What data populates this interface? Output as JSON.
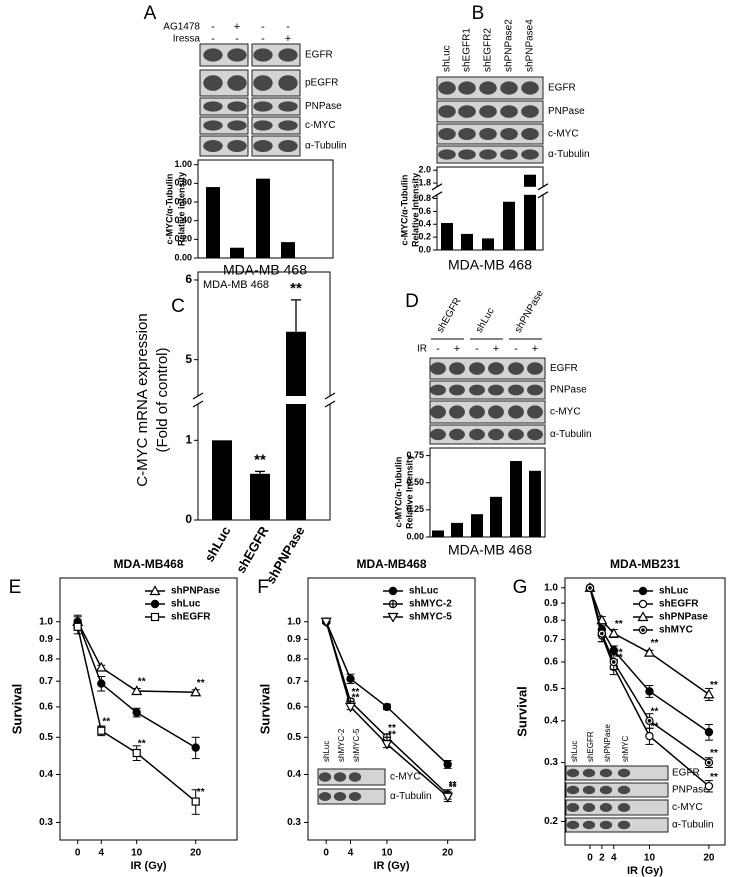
{
  "chart_data": [
    {
      "label": "A",
      "type": "bar",
      "treatments": [
        {
          "name": "AG1478",
          "signs": [
            "-",
            "+",
            "-",
            "-"
          ]
        },
        {
          "name": "Iressa",
          "signs": [
            "-",
            "-",
            "-",
            "+"
          ]
        }
      ],
      "bands": [
        "EGFR",
        "pEGFR",
        "PNPase",
        "c-MYC",
        "α-Tubulin"
      ],
      "values": [
        0.76,
        0.11,
        0.85,
        0.17
      ],
      "color": "#000000",
      "ylabel": [
        "c-MYC/α-Tubulin",
        "Relative intensity"
      ],
      "xlabel": "MDA-MB 468",
      "ylim": [
        0,
        1.05
      ],
      "yticks": [
        {
          "value": 0,
          "label": "0.00"
        },
        {
          "value": 0.2,
          "label": "0.20"
        },
        {
          "value": 0.4,
          "label": "0.40"
        },
        {
          "value": 0.6,
          "label": "0.60"
        },
        {
          "value": 0.8,
          "label": "0.80"
        },
        {
          "value": 1,
          "label": "1.00"
        }
      ]
    },
    {
      "label": "B",
      "type": "bar",
      "categories": [
        "shLuc",
        "shEGFR1",
        "shEGFR2",
        "shPNPase2",
        "shPNPase4"
      ],
      "bands": [
        "EGFR",
        "PNPase",
        "c-MYC",
        "α-Tubulin"
      ],
      "values": [
        0.42,
        0.25,
        0.18,
        0.75,
        1.93
      ],
      "color": "#000000",
      "ylabel": [
        "c-MYC/α-Tubulin",
        "Relative Intensity"
      ],
      "xlabel": "MDA-MB 468",
      "ylim": [
        0,
        2.05
      ],
      "ybreak": [
        0.85,
        1.75
      ],
      "yticks": [
        {
          "value": 0,
          "label": "0.0"
        },
        0.2,
        0.4,
        0.6,
        0.8,
        1.8,
        {
          "value": 2,
          "label": "2.0"
        }
      ]
    },
    {
      "label": "C",
      "type": "bar",
      "title": "MDA-MB 468",
      "categories": [
        "shLuc",
        "shEGFR",
        "shPNPase"
      ],
      "values": [
        1.0,
        0.58,
        5.35
      ],
      "errors": [
        null,
        0.03,
        0.4
      ],
      "annotations": [
        null,
        "**",
        "**"
      ],
      "color": "#000000",
      "ylabel": [
        "C-MYC mRNA expression",
        "(Fold of control)"
      ],
      "ylim": [
        0,
        6.1
      ],
      "ybreak": [
        1.45,
        4.55
      ],
      "yticks": [
        0,
        1,
        5,
        6
      ]
    },
    {
      "label": "D",
      "type": "bar",
      "groups": [
        "shEGFR",
        "shLuc",
        "shPNPase"
      ],
      "treatments": [
        {
          "name": "IR",
          "signs": [
            "-",
            "+",
            "-",
            "+",
            "-",
            "+"
          ]
        }
      ],
      "bands": [
        "EGFR",
        "PNPase",
        "c-MYC",
        "α-Tubulin"
      ],
      "values": [
        0.06,
        0.13,
        0.21,
        0.37,
        0.7,
        0.61
      ],
      "color": "#000000",
      "ylabel": [
        "c-MYC/α-Tubulin",
        "Relative Intensity"
      ],
      "xlabel": "MDA-MB 468",
      "ylim": [
        0,
        0.82
      ],
      "yticks": [
        {
          "value": 0,
          "label": "0.00"
        },
        {
          "value": 0.25,
          "label": "0.25"
        },
        {
          "value": 0.5,
          "label": "0.50"
        },
        {
          "value": 0.75,
          "label": "0.75"
        }
      ]
    },
    {
      "label": "E",
      "type": "line",
      "title": "MDA-MB468",
      "xlabel": "IR (Gy)",
      "ylabel": "Survival",
      "x": [
        0,
        4,
        10,
        20
      ],
      "xlim": [
        -3,
        27
      ],
      "xticks": [
        0,
        4,
        10,
        20
      ],
      "ylim": [
        0.27,
        1.3
      ],
      "log_scale": true,
      "legend": "upper right",
      "yticks": [
        {
          "value": 1,
          "label": "1.0"
        },
        0.9,
        0.8,
        0.7,
        0.6,
        0.5,
        0.4,
        0.3
      ],
      "series": [
        {
          "name": "shPNPase",
          "color": "#000000",
          "marker": "triangle-open",
          "values": [
            1.0,
            0.76,
            0.66,
            0.655
          ],
          "errors": [
            0.03,
            0.01,
            0.01,
            0.01
          ],
          "annotations": [
            null,
            null,
            "**",
            "**"
          ]
        },
        {
          "name": "shLuc",
          "color": "#000000",
          "marker": "circle-filled",
          "values": [
            1.0,
            0.69,
            0.58,
            0.47
          ],
          "errors": [
            0.04,
            0.03,
            0.015,
            0.03
          ]
        },
        {
          "name": "shEGFR",
          "color": "#000000",
          "marker": "square-open",
          "values": [
            0.97,
            0.52,
            0.455,
            0.34
          ],
          "errors": [
            0.04,
            0.015,
            0.02,
            0.025
          ],
          "annotations": [
            null,
            "**",
            "**",
            "**"
          ]
        }
      ]
    },
    {
      "label": "F",
      "type": "line",
      "title": "MDA-MB468",
      "xlabel": "IR (Gy)",
      "ylabel": "Survival",
      "x": [
        0,
        4,
        10,
        20
      ],
      "xlim": [
        -3,
        24.5
      ],
      "xticks": [
        0,
        4,
        10,
        20
      ],
      "ylim": [
        0.27,
        1.3
      ],
      "log_scale": true,
      "legend": "upper right",
      "yticks": [
        {
          "value": 1,
          "label": "1.0"
        },
        0.9,
        0.8,
        0.7,
        0.6,
        0.5,
        0.4,
        0.3
      ],
      "inset": {
        "lanes": [
          "shLuc",
          "shMYC-2",
          "shMYC-5"
        ],
        "bands": [
          "c-MYC",
          "α-Tubulin"
        ]
      },
      "series": [
        {
          "name": "shLuc",
          "color": "#000000",
          "marker": "circle-filled",
          "values": [
            1.0,
            0.71,
            0.6,
            0.425
          ],
          "errors": [
            0.01,
            0.02,
            0.01,
            0.01
          ]
        },
        {
          "name": "shMYC-2",
          "color": "#000000",
          "marker": "circle-cross",
          "values": [
            1.0,
            0.62,
            0.5,
            0.355
          ],
          "errors": [
            0.01,
            0.01,
            0.01,
            0.01
          ],
          "annotations": [
            null,
            "**",
            "**",
            "**"
          ]
        },
        {
          "name": "shMYC-5",
          "color": "#000000",
          "marker": "triangle-down-open",
          "values": [
            1.0,
            0.6,
            0.48,
            0.35
          ],
          "errors": [
            0.01,
            0.01,
            0.01,
            0.01
          ],
          "annotations": [
            null,
            "**",
            "**",
            "**"
          ]
        }
      ]
    },
    {
      "label": "G",
      "type": "line",
      "title": "MDA-MB231",
      "xlabel": "IR (Gy)",
      "ylabel": "Survival",
      "x": [
        0,
        2,
        4,
        10,
        20
      ],
      "xlim": [
        -4.2,
        22.7
      ],
      "xticks": [
        0,
        2,
        4,
        10,
        20
      ],
      "ylim": [
        0.17,
        1.07
      ],
      "log_scale": true,
      "legend": "upper right",
      "yticks": [
        {
          "value": 1,
          "label": "1.0"
        },
        0.9,
        0.8,
        0.7,
        0.6,
        0.5,
        0.4,
        0.3,
        0.2
      ],
      "inset": {
        "lanes": [
          "shLuc",
          "shEGFR",
          "shPNPase",
          "shMYC"
        ],
        "bands": [
          "EGFR",
          "PNPase",
          "c-MYC",
          "α-Tubulin"
        ]
      },
      "series": [
        {
          "name": "shLuc",
          "color": "#000000",
          "marker": "circle-filled",
          "values": [
            1.0,
            0.75,
            0.65,
            0.49,
            0.37
          ],
          "errors": [
            0.01,
            0.03,
            0.02,
            0.02,
            0.02
          ]
        },
        {
          "name": "shEGFR",
          "color": "#000000",
          "marker": "circle-open",
          "values": [
            1.0,
            0.72,
            0.58,
            0.36,
            0.255
          ],
          "errors": [
            0.01,
            0.03,
            0.03,
            0.02,
            0.01
          ],
          "annotations": [
            null,
            null,
            "**",
            "**",
            "**"
          ]
        },
        {
          "name": "shPNPase",
          "color": "#000000",
          "marker": "triangle-open",
          "values": [
            1.0,
            0.8,
            0.73,
            0.64,
            0.48
          ],
          "errors": [
            0.01,
            0.02,
            0.02,
            0.01,
            0.02
          ],
          "annotations": [
            null,
            null,
            "**",
            "**",
            "**"
          ]
        },
        {
          "name": "shMYC",
          "color": "#000000",
          "marker": "circle-dot",
          "values": [
            1.0,
            0.73,
            0.6,
            0.4,
            0.3
          ],
          "errors": [
            0.01,
            0.04,
            0.03,
            0.02,
            0.01
          ],
          "annotations": [
            null,
            null,
            "**",
            "**",
            "**"
          ]
        }
      ]
    }
  ]
}
